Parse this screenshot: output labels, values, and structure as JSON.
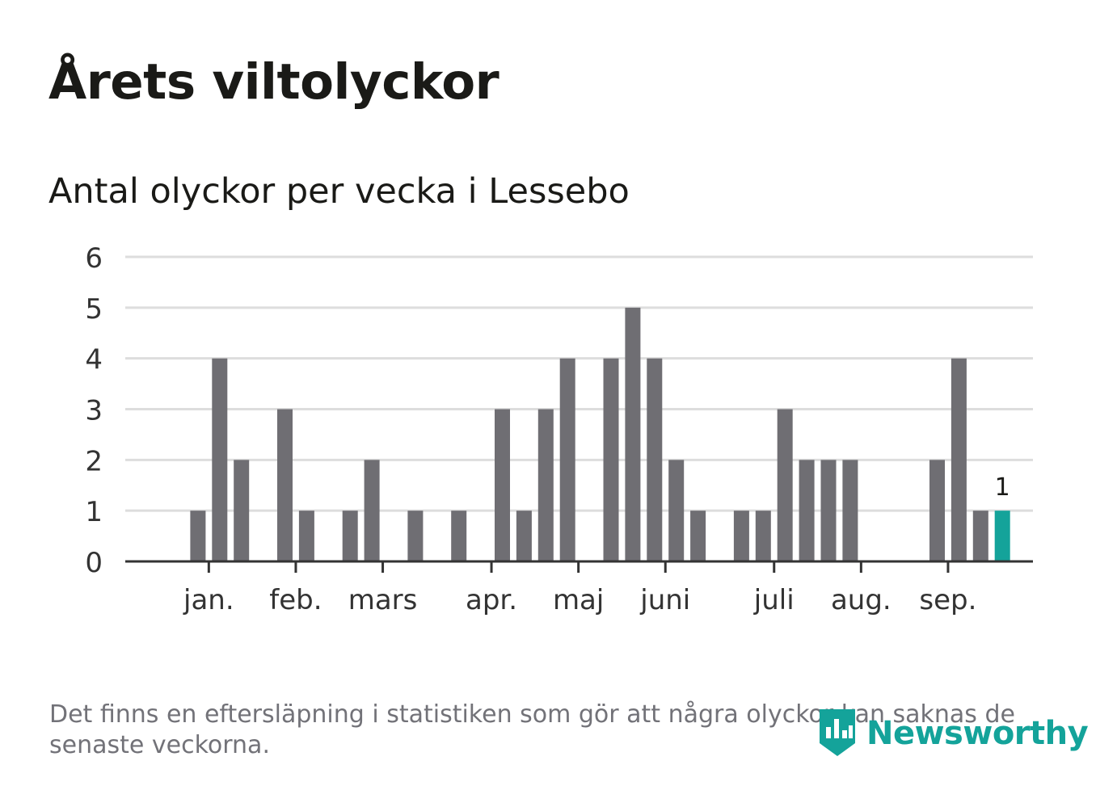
{
  "title": "Årets viltolyckor",
  "subtitle": "Antal olyckor per vecka i Lessebo",
  "footnote": "Det finns en eftersläpning i statistiken som gör att några olyckor kan saknas de senaste veckorna.",
  "brand": "Newsworthy",
  "colors": {
    "bar": "#6f6e73",
    "highlight": "#14a39a",
    "grid": "#dddddd",
    "axis": "#333333",
    "text": "#1a1a17",
    "muted": "#727278"
  },
  "chart_data": {
    "type": "bar",
    "title": "Antal olyckor per vecka i Lessebo",
    "xlabel": "",
    "ylabel": "",
    "ylim": [
      0,
      6
    ],
    "yticks": [
      0,
      1,
      2,
      3,
      4,
      5,
      6
    ],
    "grid": true,
    "weeks": [
      1,
      2,
      3,
      4,
      5,
      6,
      7,
      8,
      9,
      10,
      11,
      12,
      13,
      14,
      15,
      16,
      17,
      18,
      19,
      20,
      21,
      22,
      23,
      24,
      25,
      26,
      27,
      28,
      29,
      30,
      31,
      32,
      33,
      34,
      35,
      36,
      37,
      38,
      39,
      40
    ],
    "values": [
      0,
      1,
      4,
      2,
      0,
      3,
      1,
      0,
      1,
      2,
      0,
      1,
      0,
      1,
      0,
      3,
      1,
      3,
      4,
      0,
      4,
      5,
      4,
      2,
      1,
      0,
      1,
      1,
      3,
      2,
      2,
      2,
      0,
      0,
      0,
      2,
      4,
      1,
      1,
      0
    ],
    "highlight_week": 39,
    "highlight_label": "1",
    "month_labels": [
      {
        "label": "jan.",
        "week": 2.5
      },
      {
        "label": "feb.",
        "week": 6.5
      },
      {
        "label": "mars",
        "week": 10.5
      },
      {
        "label": "apr.",
        "week": 15.5
      },
      {
        "label": "maj",
        "week": 19.5
      },
      {
        "label": "juni",
        "week": 23.5
      },
      {
        "label": "juli",
        "week": 28.5
      },
      {
        "label": "aug.",
        "week": 32.5
      },
      {
        "label": "sep.",
        "week": 36.5
      }
    ]
  }
}
